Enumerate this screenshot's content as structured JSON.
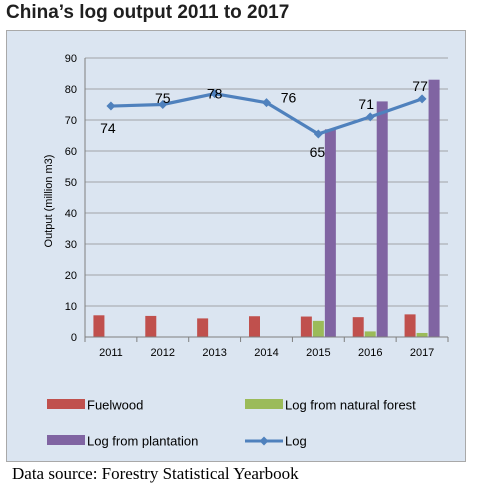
{
  "title": "China’s log output 2011 to 2017",
  "source": "Data source: Forestry Statistical Yearbook",
  "chart_data": {
    "type": "bar",
    "categories": [
      "2011",
      "2012",
      "2013",
      "2014",
      "2015",
      "2016",
      "2017"
    ],
    "ylabel": "Output (million m3)",
    "xlabel": "",
    "ylim": [
      0,
      90
    ],
    "yticks": [
      0,
      10,
      20,
      30,
      40,
      50,
      60,
      70,
      80,
      90
    ],
    "grid": true,
    "legend_position": "bottom",
    "background": "#dbe5f1",
    "series": [
      {
        "name": "Fuelwood",
        "kind": "bar",
        "color": "#c0504d",
        "values": [
          7.0,
          6.8,
          6.0,
          6.7,
          6.6,
          6.4,
          7.3
        ]
      },
      {
        "name": "Log from natural forest",
        "kind": "bar",
        "color": "#9bbb59",
        "values": [
          0,
          0,
          0,
          0,
          5.2,
          1.8,
          1.3
        ]
      },
      {
        "name": "Log from plantation",
        "kind": "bar",
        "color": "#8064a2",
        "values": [
          0,
          0,
          0,
          0,
          67,
          76,
          83
        ]
      },
      {
        "name": "Log",
        "kind": "line",
        "color": "#4f81bd",
        "values": [
          74.5,
          75,
          78.5,
          75.6,
          65.5,
          71,
          76.8
        ]
      }
    ],
    "data_labels": [
      "74",
      "75",
      "78",
      "76",
      "65",
      "71",
      "77"
    ]
  }
}
